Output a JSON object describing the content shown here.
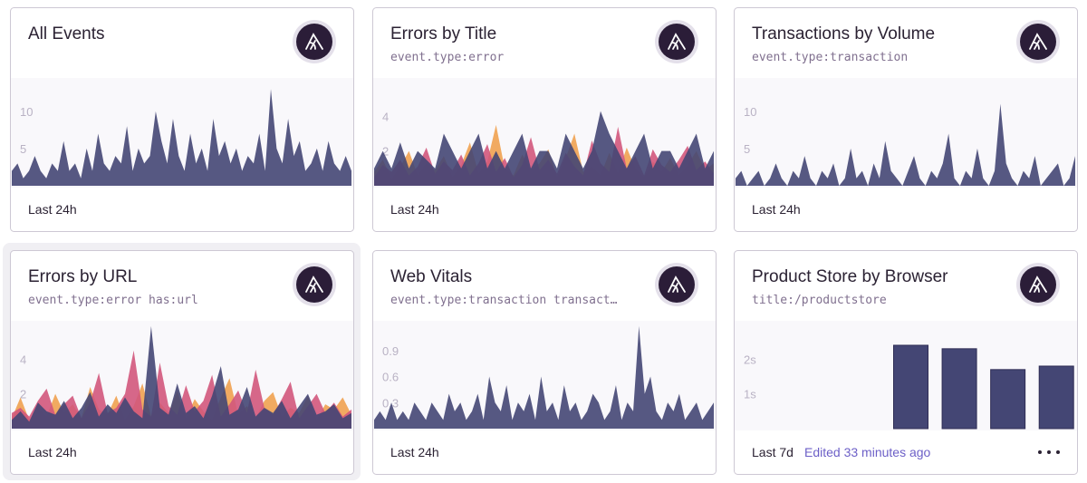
{
  "cards": [
    {
      "title": "All Events",
      "period": "Last 24h"
    },
    {
      "title": "Errors by Title",
      "query": "event.type:error",
      "period": "Last 24h"
    },
    {
      "title": "Transactions by Volume",
      "query": "event.type:transaction",
      "period": "Last 24h"
    },
    {
      "title": "Errors by URL",
      "query": "event.type:error has:url",
      "period": "Last 24h"
    },
    {
      "title": "Web Vitals",
      "query": "event.type:transaction transact…",
      "period": "Last 24h"
    },
    {
      "title": "Product Store by Browser",
      "query": "title:/productstore",
      "period": "Last 7d",
      "edited": "Edited 33 minutes ago"
    }
  ],
  "chart_data": [
    {
      "type": "area",
      "ylim": [
        0,
        14
      ],
      "yticks": [
        5,
        10
      ],
      "series": [
        {
          "color": "#444674",
          "values": [
            2,
            3,
            1,
            2,
            4,
            2,
            1,
            3,
            2,
            6,
            2,
            3,
            1,
            5,
            2,
            7,
            3,
            2,
            4,
            3,
            8,
            2,
            5,
            3,
            4,
            10,
            6,
            3,
            9,
            4,
            2,
            7,
            3,
            5,
            2,
            9,
            4,
            6,
            3,
            5,
            2,
            4,
            3,
            7,
            2,
            13,
            5,
            3,
            9,
            4,
            6,
            2,
            3,
            5,
            2,
            6,
            3,
            2,
            4,
            2
          ]
        }
      ]
    },
    {
      "type": "area",
      "ylim": [
        0,
        6
      ],
      "yticks": [
        2,
        4
      ],
      "series": [
        {
          "color": "#f0a150",
          "values": [
            0.8,
            1.5,
            0.4,
            1.1,
            2.0,
            0.6,
            1.3,
            0.9,
            1.7,
            0.5,
            1.2,
            2.5,
            0.7,
            1.4,
            3.5,
            1.0,
            0.6,
            1.8,
            0.9,
            1.3,
            2.1,
            0.5,
            1.6,
            3.0,
            0.8,
            1.1,
            0.6,
            1.9,
            0.7,
            2.2,
            1.0,
            0.5,
            1.4,
            0.8,
            1.6,
            0.6,
            1.2,
            2.0,
            0.9,
            1.3
          ]
        },
        {
          "color": "#d1567c",
          "values": [
            0.5,
            1.2,
            0.8,
            1.5,
            0.6,
            1.1,
            2.2,
            0.7,
            1.4,
            0.9,
            1.8,
            0.6,
            1.3,
            2.4,
            0.8,
            1.6,
            0.5,
            1.2,
            2.8,
            0.9,
            1.5,
            0.7,
            1.9,
            1.1,
            0.6,
            2.6,
            1.3,
            0.8,
            3.4,
            1.0,
            1.7,
            0.6,
            2.1,
            1.2,
            0.8,
            1.5,
            2.3,
            0.9,
            1.4,
            0.7
          ]
        },
        {
          "color": "#444674",
          "values": [
            1,
            2,
            1,
            2.5,
            1,
            2,
            1.5,
            1,
            3,
            2,
            1,
            2,
            3,
            1,
            2,
            1,
            2,
            3,
            1,
            2,
            2,
            1,
            3,
            2,
            1,
            2,
            4.3,
            3,
            2,
            1,
            2,
            3,
            1,
            2,
            2,
            1,
            2,
            3,
            1,
            2
          ]
        }
      ]
    },
    {
      "type": "area",
      "ylim": [
        0,
        14
      ],
      "yticks": [
        5,
        10
      ],
      "series": [
        {
          "color": "#444674",
          "values": [
            1,
            2,
            0,
            1,
            2,
            0,
            1,
            3,
            1,
            0,
            2,
            1,
            4,
            1,
            0,
            2,
            1,
            3,
            0,
            1,
            5,
            1,
            2,
            0,
            3,
            1,
            6,
            2,
            1,
            0,
            2,
            4,
            1,
            0,
            2,
            1,
            3,
            7,
            1,
            0,
            2,
            1,
            5,
            1,
            0,
            2,
            11,
            3,
            1,
            0,
            2,
            1,
            4,
            0,
            1,
            2,
            3,
            0,
            1,
            4
          ]
        }
      ]
    },
    {
      "type": "area",
      "ylim": [
        0,
        6
      ],
      "yticks": [
        2,
        4
      ],
      "series": [
        {
          "color": "#f0a150",
          "values": [
            0.6,
            1.8,
            0.5,
            1.2,
            0.7,
            2.0,
            0.9,
            1.4,
            0.6,
            2.4,
            1.1,
            0.8,
            1.9,
            0.5,
            1.3,
            2.6,
            0.7,
            1.5,
            0.9,
            2.2,
            0.6,
            1.7,
            1.0,
            0.5,
            1.8,
            2.9,
            0.8,
            1.3,
            0.6,
            1.6,
            2.1,
            0.7,
            1.2,
            0.9,
            1.9,
            0.5,
            1.4,
            1.1,
            1.8,
            0.8
          ]
        },
        {
          "color": "#d1567c",
          "values": [
            0.9,
            1.2,
            0.7,
            1.6,
            2.3,
            0.8,
            1.4,
            1.9,
            0.6,
            1.5,
            3.2,
            0.9,
            1.2,
            2.0,
            4.5,
            1.1,
            0.7,
            3.8,
            1.3,
            0.8,
            2.5,
            1.0,
            1.6,
            3.1,
            0.7,
            1.4,
            2.2,
            0.9,
            3.4,
            1.2,
            0.8,
            1.7,
            2.7,
            0.6,
            1.3,
            2.0,
            0.9,
            1.5,
            0.7,
            1.1
          ]
        },
        {
          "color": "#444674",
          "values": [
            0.5,
            1,
            0.4,
            1.5,
            1,
            0.8,
            1.6,
            0.6,
            1.2,
            2.1,
            0.7,
            1.4,
            0.9,
            1.8,
            1.0,
            0.6,
            5.9,
            1.2,
            0.8,
            2.6,
            0.9,
            1.3,
            0.6,
            1.9,
            3.6,
            0.8,
            1.1,
            2.4,
            0.7,
            1.2,
            0.9,
            1.6,
            0.6,
            1.3,
            2.0,
            0.8,
            1.0,
            1.4,
            0.6,
            0.9
          ]
        }
      ]
    },
    {
      "type": "area",
      "ylim": [
        0,
        1.2
      ],
      "yticks": [
        0.3,
        0.6,
        0.9
      ],
      "series": [
        {
          "color": "#444674",
          "values": [
            0.1,
            0.2,
            0.1,
            0.3,
            0.1,
            0.2,
            0.1,
            0.3,
            0.2,
            0.1,
            0.3,
            0.2,
            0.1,
            0.4,
            0.2,
            0.3,
            0.1,
            0.2,
            0.4,
            0.1,
            0.6,
            0.3,
            0.2,
            0.5,
            0.1,
            0.3,
            0.2,
            0.4,
            0.1,
            0.6,
            0.2,
            0.3,
            0.1,
            0.5,
            0.2,
            0.3,
            0.1,
            0.2,
            0.4,
            0.3,
            0.1,
            0.2,
            0.5,
            0.1,
            0.3,
            0.2,
            1.18,
            0.4,
            0.6,
            0.2,
            0.1,
            0.3,
            0.2,
            0.4,
            0.1,
            0.2,
            0.3,
            0.1,
            0.2,
            0.3
          ]
        }
      ]
    },
    {
      "type": "bar",
      "ylim": [
        0,
        3
      ],
      "yticks": [
        {
          "value": 1,
          "label": "1s"
        },
        {
          "value": 2,
          "label": "2s"
        }
      ],
      "categories": [
        null,
        null,
        null,
        null,
        null,
        null,
        null
      ],
      "series": [
        {
          "color": "#444674",
          "values": [
            null,
            null,
            null,
            2.4,
            2.3,
            1.7,
            1.8
          ]
        }
      ]
    }
  ]
}
